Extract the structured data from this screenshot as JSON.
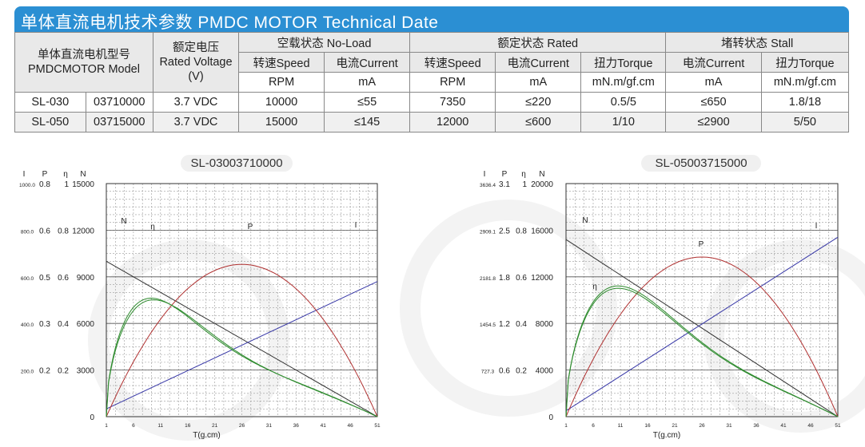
{
  "header": {
    "title": "单体直流电机技术参数  PMDC MOTOR Technical Date"
  },
  "table": {
    "model_header": [
      "单体直流电机型号",
      "PMDCMOTOR Model"
    ],
    "voltage_header": [
      "额定电压",
      "Rated Voltage",
      "(V)"
    ],
    "group_noload": "空载状态 No-Load",
    "group_rated": "额定状态 Rated",
    "group_stall": "堵转状态 Stall",
    "sub_headers": [
      "转速Speed",
      "电流Current",
      "转速Speed",
      "电流Current",
      "扭力Torque",
      "电流Current",
      "扭力Torque"
    ],
    "units": [
      "RPM",
      "mA",
      "RPM",
      "mA",
      "mN.m/gf.cm",
      "mA",
      "mN.m/gf.cm"
    ],
    "rows": [
      [
        "SL-030",
        "03710000",
        "3.7 VDC",
        "10000",
        "≤55",
        "7350",
        "≤220",
        "0.5/5",
        "≤650",
        "1.8/18"
      ],
      [
        "SL-050",
        "03715000",
        "3.7 VDC",
        "15000",
        "≤145",
        "12000",
        "≤600",
        "1/10",
        "≤2900",
        "5/50"
      ]
    ]
  },
  "charts_text": {
    "axis_header": [
      "I",
      "P",
      "η",
      "N"
    ],
    "xlabel": "T(g.cm)"
  },
  "chart_data": [
    {
      "type": "line",
      "title": "SL-03003710000",
      "xlabel": "T(g.cm)",
      "x_ticks": [
        1,
        6,
        11,
        16,
        21,
        26,
        31,
        36,
        41,
        46,
        51
      ],
      "xlim": [
        1,
        51
      ],
      "y_axes": {
        "I": [
          "1000.0",
          "800.0",
          "600.0",
          "400.0",
          "200.0"
        ],
        "P": [
          "0.8",
          "0.6",
          "0.5",
          "0.3",
          "0.2"
        ],
        "eta": [
          "1",
          "0.8",
          "0.6",
          "0.4",
          "0.2"
        ],
        "N": [
          "15000",
          "12000",
          "9000",
          "6000",
          "3000",
          "0"
        ]
      },
      "ylim_N": [
        0,
        15000
      ],
      "curve_labels": {
        "N": "N",
        "eta": "η",
        "P": "P",
        "I": "I"
      },
      "colors": {
        "N": "#333333",
        "eta": "#2e8b2e",
        "P": "#b03030",
        "I": "#3a3aa8"
      },
      "series": {
        "N": {
          "start": 10000,
          "end": 0
        },
        "I": {
          "start": 500,
          "end": 8700
        },
        "P": {
          "peak": 9800,
          "peak_x": 26
        },
        "eta_upper": {
          "peak": 7600,
          "peak_x": 8.5
        },
        "eta_lower": {
          "peak": 7500,
          "peak_x": 9
        }
      }
    },
    {
      "type": "line",
      "title": "SL-05003715000",
      "xlabel": "T(g.cm)",
      "x_ticks": [
        1,
        6,
        11,
        16,
        21,
        26,
        31,
        36,
        41,
        46,
        51
      ],
      "xlim": [
        1,
        51
      ],
      "y_axes": {
        "I": [
          "3636.4",
          "2909.1",
          "2181.8",
          "1454.5",
          "727.3"
        ],
        "P": [
          "3.1",
          "2.5",
          "1.8",
          "1.2",
          "0.6"
        ],
        "eta": [
          "1",
          "0.8",
          "0.6",
          "0.4",
          "0.2"
        ],
        "N": [
          "20000",
          "16000",
          "12000",
          "8000",
          "4000",
          "0"
        ]
      },
      "ylim_N": [
        0,
        20000
      ],
      "curve_labels": {
        "N": "N",
        "eta": "η",
        "P": "P",
        "I": "I"
      },
      "colors": {
        "N": "#333333",
        "eta": "#2e8b2e",
        "P": "#b03030",
        "I": "#3a3aa8"
      },
      "series": {
        "N": {
          "start": 15200,
          "end": 0
        },
        "I": {
          "start": 500,
          "end": 15400
        },
        "P": {
          "peak": 13700,
          "peak_x": 26
        },
        "eta_upper": {
          "peak": 11200,
          "peak_x": 10
        },
        "eta_lower": {
          "peak": 11000,
          "peak_x": 10
        }
      }
    }
  ]
}
